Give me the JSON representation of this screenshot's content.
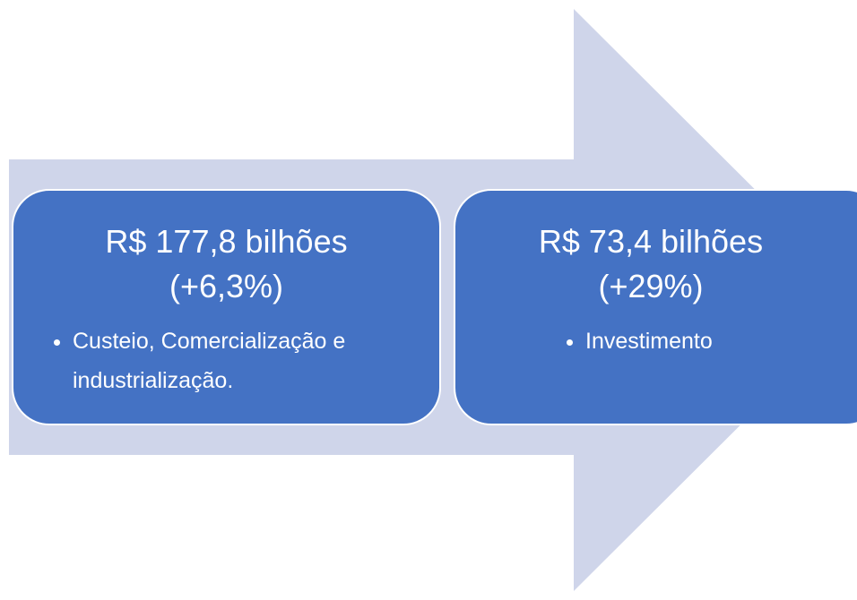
{
  "nodes": [
    {
      "title": "R$ 177,8 bilhões",
      "subtitle": "(+6,3%)",
      "bullet": "Custeio, Comercialização e industrialização."
    },
    {
      "title": "R$ 73,4 bilhões",
      "subtitle": "(+29%)",
      "bullet": "Investimento"
    }
  ]
}
